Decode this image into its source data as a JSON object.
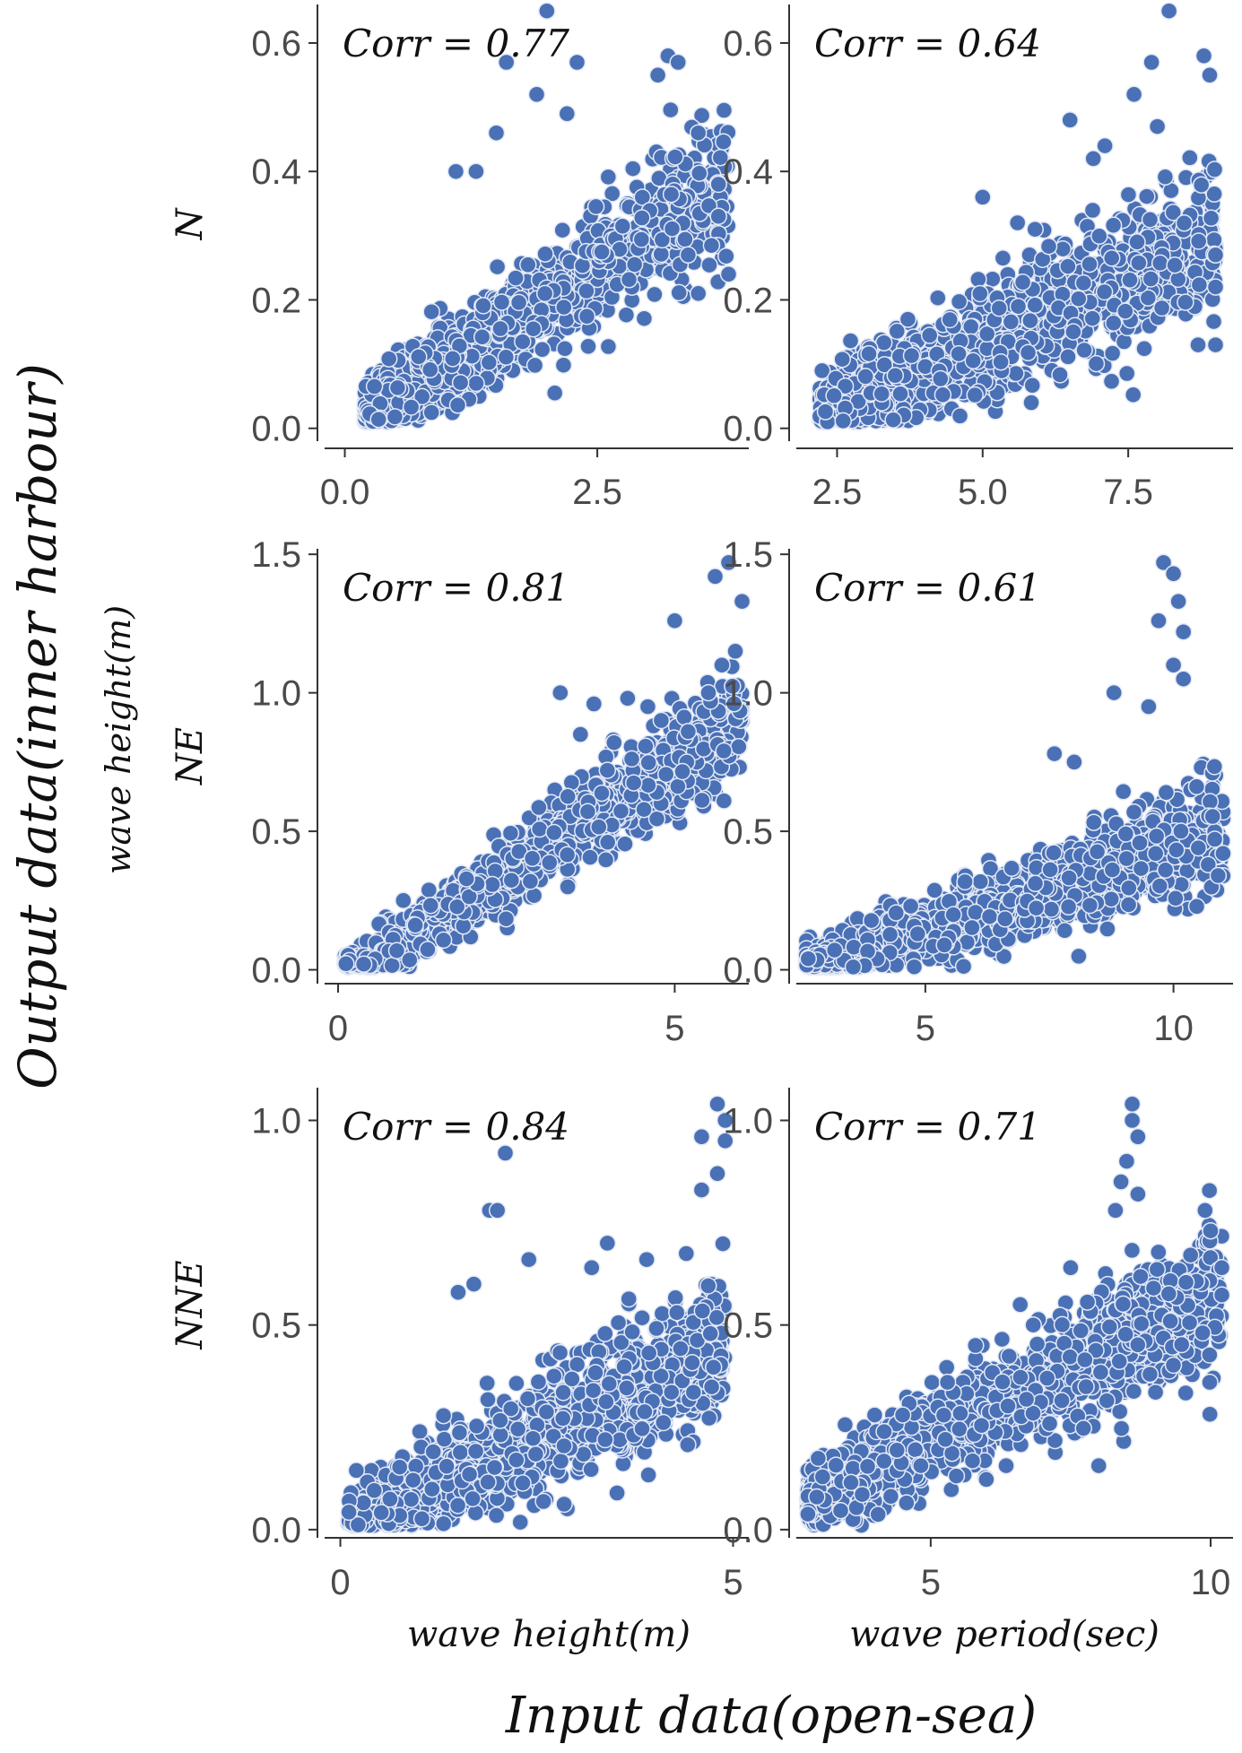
{
  "figure": {
    "xlabel": "Input data(open-sea)",
    "ylabel": "Output data(inner harbour)",
    "sub_ylabel": "wave height(m)",
    "col_xlabels": [
      "wave height(m)",
      "wave period(sec)"
    ],
    "row_labels": [
      "N",
      "NE",
      "NNE"
    ],
    "marker_color": "#4a70b5",
    "marker_edge_color": "#e3e9f5"
  },
  "chart_data": [
    {
      "type": "scatter",
      "row": "N",
      "x_variable": "wave height(m)",
      "annotation": "Corr = 0.77",
      "xlim": [
        -0.2,
        4.0
      ],
      "ylim": [
        -0.02,
        0.66
      ],
      "xticks": [
        0.0,
        2.5
      ],
      "xtick_labels": [
        "0.0",
        "2.5"
      ],
      "yticks": [
        0.0,
        0.2,
        0.4,
        0.6
      ],
      "ytick_labels": [
        "0.0",
        "0.2",
        "0.4",
        "0.6"
      ],
      "x_range": [
        0.2,
        3.8
      ],
      "y_range": [
        0.01,
        0.65
      ],
      "outliers": [
        [
          2.0,
          0.65
        ],
        [
          1.6,
          0.57
        ],
        [
          2.3,
          0.57
        ],
        [
          3.2,
          0.58
        ],
        [
          3.3,
          0.57
        ],
        [
          3.1,
          0.55
        ],
        [
          1.9,
          0.52
        ],
        [
          2.2,
          0.49
        ],
        [
          3.5,
          0.46
        ],
        [
          1.5,
          0.46
        ],
        [
          3.7,
          0.38
        ],
        [
          3.8,
          0.24
        ],
        [
          3.5,
          0.21
        ],
        [
          3.4,
          0.27
        ],
        [
          3.7,
          0.33
        ],
        [
          1.1,
          0.4
        ],
        [
          1.3,
          0.4
        ]
      ],
      "shape": {
        "gen": "linear",
        "n": 1200,
        "slope": 0.1,
        "intercept": 0.0,
        "spread": 0.055,
        "floor": 0.01,
        "power": 1.4,
        "seed": 11
      }
    },
    {
      "type": "scatter",
      "row": "N",
      "x_variable": "wave period(sec)",
      "annotation": "Corr = 0.64",
      "xlim": [
        1.8,
        9.3
      ],
      "ylim": [
        -0.02,
        0.66
      ],
      "xticks": [
        2.5,
        5.0,
        7.5
      ],
      "xtick_labels": [
        "2.5",
        "5.0",
        "7.5"
      ],
      "yticks": [
        0.0,
        0.2,
        0.4,
        0.6
      ],
      "ytick_labels": [
        "0.0",
        "0.2",
        "0.4",
        "0.6"
      ],
      "x_range": [
        2.2,
        9.0
      ],
      "y_range": [
        0.01,
        0.65
      ],
      "outliers": [
        [
          8.2,
          0.65
        ],
        [
          8.8,
          0.58
        ],
        [
          8.9,
          0.55
        ],
        [
          7.9,
          0.57
        ],
        [
          7.6,
          0.52
        ],
        [
          8.0,
          0.47
        ],
        [
          6.5,
          0.48
        ],
        [
          5.0,
          0.36
        ],
        [
          5.6,
          0.32
        ],
        [
          5.9,
          0.31
        ],
        [
          6.9,
          0.42
        ],
        [
          7.1,
          0.44
        ],
        [
          9.0,
          0.27
        ],
        [
          9.0,
          0.13
        ],
        [
          8.7,
          0.13
        ],
        [
          9.0,
          0.22
        ]
      ],
      "shape": {
        "gen": "linear",
        "n": 1300,
        "slope": 0.04,
        "intercept": -0.07,
        "spread": 0.06,
        "floor": 0.01,
        "power": 1.2,
        "seed": 23
      }
    },
    {
      "type": "scatter",
      "row": "NE",
      "x_variable": "wave height(m)",
      "annotation": "Corr = 0.81",
      "xlim": [
        -0.2,
        6.1
      ],
      "ylim": [
        -0.05,
        1.52
      ],
      "xticks": [
        0,
        5
      ],
      "xtick_labels": [
        "0",
        "5"
      ],
      "yticks": [
        0.0,
        0.5,
        1.0,
        1.5
      ],
      "ytick_labels": [
        "0.0",
        "0.5",
        "1.0",
        "1.5"
      ],
      "x_range": [
        0.1,
        6.0
      ],
      "y_range": [
        0.01,
        1.47
      ],
      "outliers": [
        [
          5.6,
          1.42
        ],
        [
          5.8,
          1.47
        ],
        [
          6.0,
          1.33
        ],
        [
          5.0,
          1.26
        ],
        [
          5.9,
          1.15
        ],
        [
          5.7,
          1.1
        ],
        [
          5.5,
          1.0
        ],
        [
          3.3,
          1.0
        ],
        [
          3.8,
          0.96
        ],
        [
          4.3,
          0.98
        ],
        [
          4.6,
          0.95
        ],
        [
          4.8,
          0.9
        ],
        [
          5.2,
          0.86
        ],
        [
          3.6,
          0.85
        ],
        [
          4.1,
          0.82
        ],
        [
          4.0,
          0.72
        ]
      ],
      "shape": {
        "gen": "linear",
        "n": 1300,
        "slope": 0.16,
        "intercept": -0.05,
        "spread": 0.09,
        "floor": 0.01,
        "power": 1.0,
        "seed": 37
      }
    },
    {
      "type": "scatter",
      "row": "NE",
      "x_variable": "wave period(sec)",
      "annotation": "Corr = 0.61",
      "xlim": [
        2.4,
        11.2
      ],
      "ylim": [
        -0.05,
        1.52
      ],
      "xticks": [
        5,
        10
      ],
      "xtick_labels": [
        "5",
        "10"
      ],
      "yticks": [
        0.0,
        0.5,
        1.0,
        1.5
      ],
      "ytick_labels": [
        "0.0",
        "0.5",
        "1.0",
        "1.5"
      ],
      "x_range": [
        2.6,
        11.0
      ],
      "y_range": [
        0.01,
        1.47
      ],
      "outliers": [
        [
          9.8,
          1.47
        ],
        [
          10.0,
          1.43
        ],
        [
          10.1,
          1.33
        ],
        [
          10.2,
          1.22
        ],
        [
          9.7,
          1.26
        ],
        [
          10.0,
          1.1
        ],
        [
          10.2,
          1.05
        ],
        [
          9.5,
          0.95
        ],
        [
          8.8,
          1.0
        ],
        [
          8.0,
          0.75
        ],
        [
          7.6,
          0.78
        ],
        [
          10.7,
          0.38
        ],
        [
          11.0,
          0.42
        ],
        [
          10.9,
          0.34
        ],
        [
          10.5,
          0.44
        ]
      ],
      "shape": {
        "gen": "linear",
        "n": 1400,
        "slope": 0.06,
        "intercept": -0.16,
        "spread": 0.1,
        "floor": 0.01,
        "power": 1.3,
        "seed": 53
      }
    },
    {
      "type": "scatter",
      "row": "NNE",
      "x_variable": "wave height(m)",
      "annotation": "Corr = 0.84",
      "xlim": [
        -0.2,
        5.2
      ],
      "ylim": [
        -0.02,
        1.08
      ],
      "xticks": [
        0,
        5
      ],
      "xtick_labels": [
        "0",
        "5"
      ],
      "yticks": [
        0.0,
        0.5,
        1.0
      ],
      "ytick_labels": [
        "0.0",
        "0.5",
        "1.0"
      ],
      "x_range": [
        0.1,
        4.9
      ],
      "y_range": [
        0.01,
        1.04
      ],
      "outliers": [
        [
          4.8,
          1.04
        ],
        [
          4.9,
          1.0
        ],
        [
          4.6,
          0.96
        ],
        [
          4.9,
          0.95
        ],
        [
          4.8,
          0.87
        ],
        [
          4.6,
          0.83
        ],
        [
          2.1,
          0.92
        ],
        [
          1.9,
          0.78
        ],
        [
          2.0,
          0.78
        ],
        [
          3.4,
          0.7
        ],
        [
          3.9,
          0.66
        ],
        [
          3.2,
          0.64
        ],
        [
          2.4,
          0.66
        ],
        [
          1.5,
          0.58
        ],
        [
          1.7,
          0.6
        ]
      ],
      "shape": {
        "gen": "linear",
        "n": 1300,
        "slope": 0.09,
        "intercept": 0.0,
        "spread": 0.09,
        "floor": 0.01,
        "power": 1.0,
        "seed": 71
      }
    },
    {
      "type": "scatter",
      "row": "NNE",
      "x_variable": "wave period(sec)",
      "annotation": "Corr = 0.71",
      "xlim": [
        2.6,
        10.4
      ],
      "ylim": [
        -0.02,
        1.08
      ],
      "xticks": [
        5,
        10
      ],
      "xtick_labels": [
        "5",
        "10"
      ],
      "yticks": [
        0.0,
        0.5,
        1.0
      ],
      "ytick_labels": [
        "0.0",
        "0.5",
        "1.0"
      ],
      "x_range": [
        2.8,
        10.2
      ],
      "y_range": [
        0.01,
        1.04
      ],
      "outliers": [
        [
          8.6,
          1.04
        ],
        [
          8.6,
          1.0
        ],
        [
          8.7,
          0.96
        ],
        [
          8.5,
          0.9
        ],
        [
          8.4,
          0.85
        ],
        [
          8.7,
          0.82
        ],
        [
          8.3,
          0.78
        ],
        [
          9.9,
          0.78
        ],
        [
          10.0,
          0.73
        ],
        [
          10.2,
          0.64
        ],
        [
          7.5,
          0.64
        ],
        [
          6.6,
          0.55
        ],
        [
          5.8,
          0.45
        ],
        [
          5.3,
          0.36
        ],
        [
          4.0,
          0.28
        ],
        [
          4.5,
          0.28
        ]
      ],
      "shape": {
        "gen": "linear",
        "n": 1400,
        "slope": 0.07,
        "intercept": -0.13,
        "spread": 0.09,
        "floor": 0.01,
        "power": 1.2,
        "seed": 89
      }
    }
  ]
}
